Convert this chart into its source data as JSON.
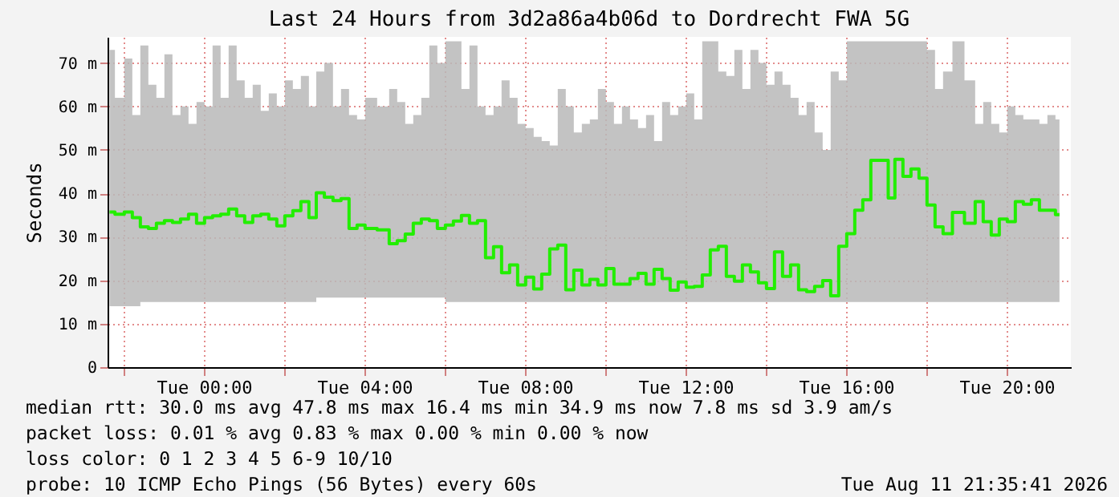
{
  "chart_data": {
    "type": "step",
    "title": "Last 24 Hours from 3d2a86a4b06d to Dordrecht FWA 5G",
    "ylabel": "Seconds",
    "xlim": [
      "2026-08-10T21:36",
      "2026-08-11T21:36"
    ],
    "ylim": [
      0,
      76
    ],
    "xticks": [
      {
        "value": "2026-08-10T22:00",
        "label": null
      },
      {
        "value": "2026-08-11T00:00",
        "label": "Tue 00:00"
      },
      {
        "value": "2026-08-11T02:00",
        "label": null
      },
      {
        "value": "2026-08-11T04:00",
        "label": "Tue 04:00"
      },
      {
        "value": "2026-08-11T06:00",
        "label": null
      },
      {
        "value": "2026-08-11T08:00",
        "label": "Tue 08:00"
      },
      {
        "value": "2026-08-11T10:00",
        "label": null
      },
      {
        "value": "2026-08-11T12:00",
        "label": "Tue 12:00"
      },
      {
        "value": "2026-08-11T14:00",
        "label": null
      },
      {
        "value": "2026-08-11T16:00",
        "label": "Tue 16:00"
      },
      {
        "value": "2026-08-11T18:00",
        "label": null
      },
      {
        "value": "2026-08-11T20:00",
        "label": "Tue 20:00"
      }
    ],
    "yticks": [
      0,
      {
        "value": 10,
        "label": "10 m"
      },
      {
        "value": 20,
        "label": "20 m"
      },
      {
        "value": 30,
        "label": "30 m"
      },
      {
        "value": 40,
        "label": "40 m"
      },
      {
        "value": 50,
        "label": "50 m"
      },
      {
        "value": 60,
        "label": "60 m"
      },
      {
        "value": 70,
        "label": "70 m"
      }
    ],
    "grid": true,
    "series": [
      {
        "color": "#22ee00",
        "x": [
          "2026-08-10T21:39",
          "2026-08-10T21:55",
          "2026-08-10T22:07",
          "2026-08-10T22:19",
          "2026-08-10T22:31",
          "2026-08-10T22:43",
          "2026-08-10T22:55",
          "2026-08-10T23:07",
          "2026-08-10T23:19",
          "2026-08-10T23:31",
          "2026-08-10T23:43",
          "2026-08-10T23:55",
          "2026-08-11T00:07",
          "2026-08-11T00:19",
          "2026-08-11T00:31",
          "2026-08-11T00:43",
          "2026-08-11T00:55",
          "2026-08-11T01:07",
          "2026-08-11T01:19",
          "2026-08-11T01:31",
          "2026-08-11T01:43",
          "2026-08-11T01:55",
          "2026-08-11T02:07",
          "2026-08-11T02:19",
          "2026-08-11T02:31",
          "2026-08-11T02:43",
          "2026-08-11T02:53",
          "2026-08-11T03:07",
          "2026-08-11T03:19",
          "2026-08-11T03:31",
          "2026-08-11T03:43",
          "2026-08-11T03:55",
          "2026-08-11T04:07",
          "2026-08-11T04:31",
          "2026-08-11T04:43",
          "2026-08-11T04:55",
          "2026-08-11T05:07",
          "2026-08-11T05:19",
          "2026-08-11T05:31",
          "2026-08-11T05:43",
          "2026-08-11T05:55",
          "2026-08-11T06:07",
          "2026-08-11T06:19",
          "2026-08-11T06:31",
          "2026-08-11T06:43",
          "2026-08-11T06:55",
          "2026-08-11T07:07",
          "2026-08-11T07:19",
          "2026-08-11T07:31",
          "2026-08-11T07:43",
          "2026-08-11T07:55",
          "2026-08-11T08:07",
          "2026-08-11T08:19",
          "2026-08-11T08:31",
          "2026-08-11T08:43",
          "2026-08-11T08:55",
          "2026-08-11T09:07",
          "2026-08-11T09:19",
          "2026-08-11T09:31",
          "2026-08-11T09:43",
          "2026-08-11T09:55",
          "2026-08-11T10:07",
          "2026-08-11T10:19",
          "2026-08-11T10:31",
          "2026-08-11T10:43",
          "2026-08-11T10:55",
          "2026-08-11T11:07",
          "2026-08-11T11:19",
          "2026-08-11T11:31",
          "2026-08-11T11:43",
          "2026-08-11T11:55",
          "2026-08-11T12:07",
          "2026-08-11T12:19",
          "2026-08-11T12:31",
          "2026-08-11T12:43",
          "2026-08-11T12:55",
          "2026-08-11T13:07",
          "2026-08-11T13:19",
          "2026-08-11T13:31",
          "2026-08-11T13:43",
          "2026-08-11T13:55",
          "2026-08-11T14:07",
          "2026-08-11T14:19",
          "2026-08-11T14:31",
          "2026-08-11T14:43",
          "2026-08-11T14:55",
          "2026-08-11T15:07",
          "2026-08-11T15:19",
          "2026-08-11T15:31",
          "2026-08-11T15:43",
          "2026-08-11T15:55",
          "2026-08-11T16:07",
          "2026-08-11T16:19",
          "2026-08-11T16:31",
          "2026-08-11T16:43",
          "2026-08-11T16:59",
          "2026-08-11T17:07",
          "2026-08-11T17:19",
          "2026-08-11T17:31",
          "2026-08-11T17:43",
          "2026-08-11T17:55",
          "2026-08-11T18:07",
          "2026-08-11T18:19",
          "2026-08-11T18:31",
          "2026-08-11T18:47",
          "2026-08-11T19:07",
          "2026-08-11T19:19",
          "2026-08-11T19:31",
          "2026-08-11T19:43",
          "2026-08-11T19:55",
          "2026-08-11T20:07",
          "2026-08-11T20:19",
          "2026-08-11T20:31",
          "2026-08-11T20:43",
          "2026-08-11T20:55",
          "2026-08-11T21:07",
          "2026-08-11T21:19"
        ],
        "values": [
          35.7,
          35.2,
          35.7,
          34.4,
          32.3,
          31.9,
          33.1,
          33.7,
          33.3,
          34.1,
          35.2,
          33.1,
          34.4,
          34.8,
          35.2,
          36.4,
          34.8,
          33.3,
          34.8,
          35.2,
          34.1,
          32.5,
          34.8,
          36.0,
          38.1,
          34.4,
          40.1,
          39.1,
          38.3,
          38.8,
          31.9,
          32.7,
          31.9,
          31.6,
          28.4,
          29.1,
          30.6,
          33.1,
          34.1,
          33.7,
          31.9,
          32.7,
          33.6,
          34.9,
          33.1,
          33.7,
          25.2,
          27.7,
          21.7,
          23.5,
          18.9,
          20.7,
          18.0,
          21.4,
          27.2,
          28.1,
          17.8,
          22.3,
          18.9,
          20.2,
          18.9,
          22.7,
          19.1,
          19.1,
          20.4,
          21.6,
          19.1,
          22.5,
          20.4,
          17.7,
          19.6,
          18.4,
          18.6,
          21.2,
          27.0,
          27.8,
          20.9,
          19.8,
          23.5,
          21.9,
          19.4,
          18.1,
          26.5,
          20.9,
          23.5,
          17.8,
          17.4,
          18.6,
          19.9,
          16.4,
          27.8,
          30.7,
          36.1,
          38.5,
          47.6,
          47.6,
          38.9,
          47.8,
          43.9,
          45.6,
          43.5,
          37.3,
          32.3,
          30.7,
          35.6,
          33.1,
          38.1,
          33.5,
          30.4,
          34.1,
          33.5,
          38.1,
          37.5,
          38.5,
          36.1,
          36.1,
          35.1
        ],
        "lower": [
          14,
          14,
          14,
          14,
          15,
          15,
          15,
          15,
          15,
          15,
          15,
          15,
          15,
          15,
          15,
          15,
          15,
          15,
          15,
          15,
          15,
          15,
          15,
          15,
          15,
          15,
          16,
          16,
          16,
          16,
          16,
          16,
          16,
          16,
          16,
          16,
          16,
          16,
          16,
          16,
          16,
          15,
          15,
          15,
          15,
          15,
          15,
          15,
          15,
          15,
          15,
          15,
          15,
          15,
          15,
          15,
          15,
          15,
          15,
          15,
          15,
          15,
          15,
          15,
          15,
          15,
          15,
          15,
          15,
          15,
          15,
          15,
          15,
          15,
          15,
          15,
          15,
          15,
          15,
          15,
          15,
          15,
          15,
          15,
          15,
          15,
          15,
          15,
          15,
          15,
          15,
          15,
          15,
          15,
          15,
          15,
          15,
          15,
          15,
          15,
          15,
          15,
          15,
          15,
          15,
          15,
          15,
          15,
          15,
          15,
          15,
          15,
          15,
          15,
          15,
          15,
          15
        ],
        "upper": [
          73,
          62,
          71,
          58,
          74,
          65,
          62,
          72,
          58,
          60,
          56,
          61,
          60,
          74,
          62,
          74,
          66,
          62,
          65,
          59,
          63,
          60,
          66,
          64,
          67,
          60,
          68,
          70,
          60,
          64,
          58,
          57,
          62,
          60,
          64,
          61,
          56,
          58,
          62,
          74,
          70,
          75,
          75,
          64,
          74,
          60,
          58,
          60,
          66,
          62,
          56,
          55,
          53,
          52,
          51,
          64,
          60,
          54,
          56,
          57,
          64,
          61,
          56,
          60,
          57,
          55,
          58,
          52,
          61,
          58,
          60,
          63,
          57,
          75,
          75,
          68,
          67,
          73,
          64,
          73,
          70,
          65,
          68,
          65,
          62,
          58,
          61,
          54,
          50,
          68,
          66,
          75,
          75,
          75,
          75,
          75,
          75,
          75,
          75,
          75,
          75,
          73,
          64,
          68,
          75,
          66,
          56,
          61,
          56,
          54,
          60,
          58,
          57,
          57,
          56,
          58,
          57
        ]
      }
    ],
    "annotations": [
      "median rtt:  30.0 ms avg  47.8 ms max  16.4 ms min  34.9 ms now  7.8 ms sd  3.9   am/s",
      "packet loss: 0.01 % avg  0.83 % max  0.00 % min  0.00 % now",
      "loss color:    0   1   2   3   4   5   6-9   10/10",
      "probe:        10 ICMP Echo Pings (56 Bytes) every 60s",
      "Tue Aug 11 21:35:41 2026"
    ]
  }
}
